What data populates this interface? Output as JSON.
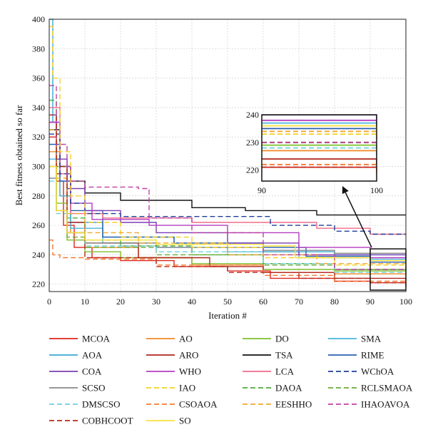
{
  "chart_data": {
    "type": "line",
    "xlabel": "Iteration #",
    "ylabel": "Best fitness obtained so far",
    "xlim": [
      0,
      100
    ],
    "ylim": [
      215,
      400
    ],
    "x_ticks": [
      0,
      10,
      20,
      30,
      40,
      50,
      60,
      70,
      80,
      90,
      100
    ],
    "y_ticks": [
      220,
      240,
      260,
      280,
      300,
      320,
      340,
      360,
      380,
      400
    ],
    "grid": true,
    "legend_position": "below",
    "inset": {
      "xlim": [
        90,
        100
      ],
      "ylim": [
        216,
        240
      ],
      "x_ticks": [
        90,
        100
      ],
      "y_ticks": [
        220,
        230,
        240
      ],
      "zoom_region": {
        "x": [
          90,
          100
        ],
        "y": [
          216,
          244
        ]
      }
    },
    "series": [
      {
        "name": "MCOA",
        "color": "#e0231c",
        "dash": "solid",
        "points": [
          [
            0,
            320
          ],
          [
            2,
            290
          ],
          [
            4,
            260
          ],
          [
            7,
            245
          ],
          [
            12,
            238
          ],
          [
            20,
            236
          ],
          [
            35,
            232
          ],
          [
            50,
            229
          ],
          [
            62,
            224
          ],
          [
            80,
            222
          ],
          [
            90,
            221
          ],
          [
            100,
            219
          ]
        ]
      },
      {
        "name": "AO",
        "color": "#f08a24",
        "dash": "solid",
        "points": [
          [
            0,
            310
          ],
          [
            3,
            280
          ],
          [
            6,
            255
          ],
          [
            10,
            245
          ],
          [
            25,
            238
          ],
          [
            40,
            233
          ],
          [
            60,
            228
          ],
          [
            80,
            227
          ],
          [
            100,
            226
          ]
        ]
      },
      {
        "name": "DO",
        "color": "#7cbf2c",
        "dash": "solid",
        "points": [
          [
            0,
            300
          ],
          [
            2,
            275
          ],
          [
            5,
            250
          ],
          [
            10,
            242
          ],
          [
            20,
            238
          ],
          [
            40,
            234
          ],
          [
            60,
            230
          ],
          [
            80,
            229
          ],
          [
            100,
            228
          ]
        ]
      },
      {
        "name": "SMA",
        "color": "#47b5e0",
        "dash": "solid",
        "points": [
          [
            0,
            305
          ],
          [
            3,
            280
          ],
          [
            6,
            258
          ],
          [
            15,
            248
          ],
          [
            30,
            245
          ],
          [
            50,
            242
          ],
          [
            70,
            238
          ],
          [
            90,
            237
          ],
          [
            100,
            237
          ]
        ]
      },
      {
        "name": "AOA",
        "color": "#37a8d4",
        "dash": "solid",
        "points": [
          [
            0,
            400
          ],
          [
            1,
            330
          ],
          [
            3,
            290
          ],
          [
            6,
            262
          ],
          [
            15,
            252
          ],
          [
            35,
            248
          ],
          [
            60,
            242
          ],
          [
            80,
            240
          ],
          [
            100,
            240
          ]
        ]
      },
      {
        "name": "ARO",
        "color": "#b0241a",
        "dash": "solid",
        "points": [
          [
            0,
            330
          ],
          [
            2,
            295
          ],
          [
            5,
            262
          ],
          [
            10,
            248
          ],
          [
            25,
            238
          ],
          [
            45,
            232
          ],
          [
            60,
            228
          ],
          [
            80,
            224
          ],
          [
            100,
            222
          ]
        ]
      },
      {
        "name": "TSA",
        "color": "#111111",
        "dash": "solid",
        "points": [
          [
            0,
            325
          ],
          [
            3,
            300
          ],
          [
            6,
            290
          ],
          [
            10,
            282
          ],
          [
            20,
            277
          ],
          [
            40,
            272
          ],
          [
            55,
            270
          ],
          [
            75,
            267
          ],
          [
            100,
            267
          ]
        ]
      },
      {
        "name": "RIME",
        "color": "#2a5fb0",
        "dash": "solid",
        "points": [
          [
            0,
            315
          ],
          [
            3,
            290
          ],
          [
            6,
            270
          ],
          [
            15,
            252
          ],
          [
            35,
            248
          ],
          [
            60,
            245
          ],
          [
            72,
            239
          ],
          [
            90,
            235
          ],
          [
            100,
            235
          ]
        ]
      },
      {
        "name": "COA",
        "color": "#7b3db3",
        "dash": "solid",
        "points": [
          [
            0,
            335
          ],
          [
            2,
            305
          ],
          [
            5,
            285
          ],
          [
            10,
            270
          ],
          [
            20,
            262
          ],
          [
            30,
            255
          ],
          [
            50,
            248
          ],
          [
            70,
            240
          ],
          [
            100,
            236
          ]
        ]
      },
      {
        "name": "WHO",
        "color": "#b43cc0",
        "dash": "solid",
        "points": [
          [
            0,
            330
          ],
          [
            3,
            300
          ],
          [
            6,
            275
          ],
          [
            12,
            264
          ],
          [
            28,
            260
          ],
          [
            50,
            255
          ],
          [
            70,
            245
          ],
          [
            90,
            238
          ],
          [
            100,
            238
          ]
        ]
      },
      {
        "name": "LCA",
        "color": "#f06a8a",
        "dash": "solid",
        "points": [
          [
            0,
            340
          ],
          [
            3,
            295
          ],
          [
            6,
            268
          ],
          [
            15,
            265
          ],
          [
            40,
            262
          ],
          [
            60,
            262
          ],
          [
            75,
            258
          ],
          [
            90,
            254
          ],
          [
            100,
            254
          ]
        ]
      },
      {
        "name": "WChOA",
        "color": "#1f3f9a",
        "dash": "dash",
        "points": [
          [
            0,
            322
          ],
          [
            3,
            295
          ],
          [
            6,
            275
          ],
          [
            10,
            268
          ],
          [
            20,
            266
          ],
          [
            40,
            266
          ],
          [
            60,
            266
          ],
          [
            62,
            260
          ],
          [
            80,
            256
          ],
          [
            90,
            254
          ],
          [
            100,
            254
          ]
        ]
      },
      {
        "name": "SCSO",
        "color": "#888888",
        "dash": "solid",
        "points": [
          [
            0,
            292
          ],
          [
            2,
            270
          ],
          [
            5,
            255
          ],
          [
            10,
            248
          ],
          [
            30,
            245
          ],
          [
            60,
            243
          ],
          [
            80,
            241
          ],
          [
            100,
            240
          ]
        ]
      },
      {
        "name": "IAO",
        "color": "#f5d020",
        "dash": "dash",
        "points": [
          [
            0,
            395
          ],
          [
            1,
            360
          ],
          [
            3,
            310
          ],
          [
            6,
            280
          ],
          [
            10,
            262
          ],
          [
            20,
            252
          ],
          [
            40,
            245
          ],
          [
            60,
            238
          ],
          [
            80,
            233
          ],
          [
            100,
            231
          ]
        ]
      },
      {
        "name": "DAOA",
        "color": "#4caa3a",
        "dash": "dash",
        "points": [
          [
            0,
            345
          ],
          [
            2,
            300
          ],
          [
            5,
            265
          ],
          [
            10,
            250
          ],
          [
            20,
            246
          ],
          [
            40,
            240
          ],
          [
            60,
            234
          ],
          [
            80,
            230
          ],
          [
            100,
            229
          ]
        ]
      },
      {
        "name": "RCLSMAOA",
        "color": "#6aaa34",
        "dash": "dash",
        "points": [
          [
            0,
            300
          ],
          [
            2,
            270
          ],
          [
            5,
            252
          ],
          [
            10,
            245
          ],
          [
            30,
            240
          ],
          [
            60,
            233
          ],
          [
            80,
            230
          ],
          [
            100,
            228
          ]
        ]
      },
      {
        "name": "DMSCSO",
        "color": "#6fd0e0",
        "dash": "dash",
        "points": [
          [
            0,
            290
          ],
          [
            2,
            268
          ],
          [
            5,
            255
          ],
          [
            10,
            246
          ],
          [
            30,
            242
          ],
          [
            60,
            234
          ],
          [
            80,
            228
          ],
          [
            100,
            224
          ]
        ]
      },
      {
        "name": "CSOAOA",
        "color": "#f27a30",
        "dash": "dash",
        "points": [
          [
            0,
            250
          ],
          [
            1,
            240
          ],
          [
            3,
            238
          ],
          [
            10,
            237
          ],
          [
            30,
            233
          ],
          [
            60,
            226
          ],
          [
            80,
            222
          ],
          [
            100,
            218
          ]
        ]
      },
      {
        "name": "EESHHO",
        "color": "#f0a830",
        "dash": "dash",
        "points": [
          [
            0,
            325
          ],
          [
            2,
            292
          ],
          [
            5,
            268
          ],
          [
            10,
            255
          ],
          [
            25,
            248
          ],
          [
            50,
            240
          ],
          [
            75,
            234
          ],
          [
            100,
            230
          ]
        ]
      },
      {
        "name": "IHAOAVOA",
        "color": "#c040a0",
        "dash": "dash",
        "points": [
          [
            0,
            355
          ],
          [
            2,
            315
          ],
          [
            5,
            290
          ],
          [
            10,
            286
          ],
          [
            20,
            286
          ],
          [
            25,
            285
          ],
          [
            28,
            265
          ],
          [
            40,
            255
          ],
          [
            60,
            240
          ],
          [
            80,
            230
          ],
          [
            100,
            231
          ]
        ]
      },
      {
        "name": "COBHCOOT",
        "color": "#b82818",
        "dash": "dash",
        "points": [
          [
            0,
            335
          ],
          [
            2,
            300
          ],
          [
            5,
            255
          ],
          [
            10,
            238
          ],
          [
            30,
            232
          ],
          [
            50,
            228
          ],
          [
            70,
            224
          ],
          [
            90,
            221
          ],
          [
            100,
            221
          ]
        ]
      },
      {
        "name": "SO",
        "color": "#f8e03a",
        "dash": "solid",
        "points": [
          [
            0,
            300
          ],
          [
            2,
            270
          ],
          [
            5,
            255
          ],
          [
            10,
            250
          ],
          [
            30,
            247
          ],
          [
            60,
            246
          ],
          [
            68,
            246
          ],
          [
            69,
            238
          ],
          [
            90,
            236
          ],
          [
            100,
            234
          ]
        ]
      }
    ]
  }
}
